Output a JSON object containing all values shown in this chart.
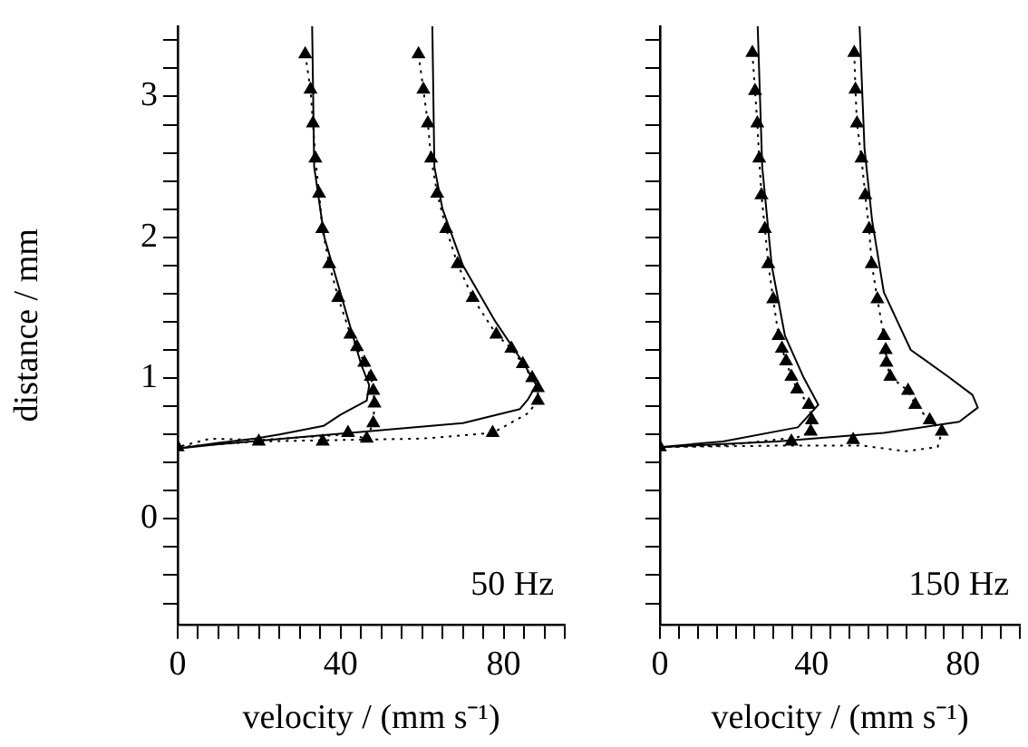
{
  "chart_data": [
    {
      "type": "scatter",
      "xlabel": "velocity / (mm s⁻¹)",
      "ylabel": "distance / mm",
      "annotations": [
        "50 Hz"
      ],
      "xlim": [
        0,
        95
      ],
      "ylim": [
        -0.75,
        3.5
      ],
      "xticks": [
        0,
        {
          "value": 5,
          "label": null
        },
        {
          "value": 10,
          "label": null
        },
        {
          "value": 15,
          "label": null
        },
        {
          "value": 20,
          "label": null
        },
        {
          "value": 25,
          "label": null
        },
        {
          "value": 30,
          "label": null
        },
        {
          "value": 35,
          "label": null
        },
        40,
        {
          "value": 45,
          "label": null
        },
        {
          "value": 50,
          "label": null
        },
        {
          "value": 55,
          "label": null
        },
        {
          "value": 60,
          "label": null
        },
        {
          "value": 65,
          "label": null
        },
        {
          "value": 70,
          "label": null
        },
        {
          "value": 75,
          "label": null
        },
        80,
        {
          "value": 85,
          "label": null
        },
        {
          "value": 90,
          "label": null
        },
        {
          "value": 95,
          "label": null
        }
      ],
      "yticks": [
        {
          "value": -0.6,
          "label": null
        },
        {
          "value": -0.4,
          "label": null
        },
        {
          "value": -0.2,
          "label": null
        },
        0,
        {
          "value": 0.2,
          "label": null
        },
        {
          "value": 0.4,
          "label": null
        },
        {
          "value": 0.6,
          "label": null
        },
        {
          "value": 0.8,
          "label": null
        },
        1,
        {
          "value": 1.2,
          "label": null
        },
        {
          "value": 1.4,
          "label": null
        },
        {
          "value": 1.6,
          "label": null
        },
        {
          "value": 1.8,
          "label": null
        },
        2,
        {
          "value": 2.2,
          "label": null
        },
        {
          "value": 2.4,
          "label": null
        },
        {
          "value": 2.6,
          "label": null
        },
        {
          "value": 2.8,
          "label": null
        },
        3,
        {
          "value": 3.2,
          "label": null
        },
        {
          "value": 3.4,
          "label": null
        }
      ],
      "series": [
        {
          "type": "line",
          "line_style": "solid",
          "marker": "none",
          "color": "#000000",
          "x": [
            33,
            33.5,
            36,
            40,
            45,
            47,
            46.4,
            40,
            35.8,
            25,
            19,
            10,
            0
          ],
          "values": [
            3.5,
            2.5,
            2.0,
            1.6,
            1.1,
            0.95,
            0.84,
            0.74,
            0.66,
            0.6,
            0.57,
            0.54,
            0.5
          ]
        },
        {
          "type": "line",
          "line_style": "solid",
          "marker": "none",
          "color": "#000000",
          "x": [
            62.5,
            63,
            65,
            70,
            78,
            85,
            88,
            86,
            84,
            70,
            50,
            30,
            10,
            0
          ],
          "values": [
            3.5,
            2.5,
            2.2,
            1.8,
            1.4,
            1.1,
            0.95,
            0.85,
            0.78,
            0.68,
            0.63,
            0.58,
            0.53,
            0.5
          ]
        },
        {
          "type": "line",
          "line_style": "dotted",
          "marker": "none",
          "color": "#000000",
          "x": [
            31.3,
            32.6,
            33.2,
            33.8,
            34.7,
            35.5,
            37.2,
            39.4,
            42.4,
            44.0,
            45.8,
            47.4,
            48.0,
            48.3,
            48.0,
            46.4,
            41.8,
            20,
            8,
            0
          ],
          "values": [
            3.3,
            3.05,
            2.81,
            2.56,
            2.31,
            2.06,
            1.81,
            1.57,
            1.31,
            1.22,
            1.11,
            1.01,
            0.91,
            0.82,
            0.68,
            0.57,
            0.6,
            0.56,
            0.57,
            0.51
          ]
        },
        {
          "type": "line",
          "line_style": "dotted",
          "marker": "none",
          "color": "#000000",
          "x": [
            59.1,
            60.3,
            61.4,
            62.2,
            63.7,
            65.9,
            68.7,
            72.4,
            78.2,
            81.9,
            84.7,
            87,
            88.4,
            88.4,
            86,
            77.3,
            60,
            40,
            20,
            0
          ],
          "values": [
            3.3,
            3.05,
            2.81,
            2.56,
            2.31,
            2.06,
            1.81,
            1.57,
            1.31,
            1.21,
            1.1,
            1.0,
            0.93,
            0.84,
            0.75,
            0.61,
            0.57,
            0.56,
            0.55,
            0.51
          ]
        },
        {
          "marker": "triangle",
          "color": "#000000",
          "x": [
            31.3,
            32.6,
            33.2,
            33.8,
            34.7,
            35.5,
            37.2,
            39.4,
            42.4,
            44.0,
            45.8,
            47.4,
            48.0,
            48.3,
            48.0,
            46.4,
            41.8,
            19.9,
            0
          ],
          "values": [
            3.3,
            3.05,
            2.81,
            2.56,
            2.31,
            2.06,
            1.81,
            1.57,
            1.31,
            1.22,
            1.11,
            1.01,
            0.91,
            0.82,
            0.68,
            0.57,
            0.61,
            0.55,
            0.51
          ]
        },
        {
          "marker": "triangle",
          "color": "#000000",
          "x": [
            59.1,
            60.3,
            61.4,
            62.2,
            63.7,
            65.9,
            68.7,
            72.4,
            78.2,
            81.9,
            84.7,
            87,
            88.4,
            88.4,
            77.3,
            35.6
          ],
          "values": [
            3.3,
            3.05,
            2.81,
            2.56,
            2.31,
            2.06,
            1.81,
            1.57,
            1.31,
            1.21,
            1.1,
            1.0,
            0.93,
            0.84,
            0.61,
            0.55
          ]
        }
      ]
    },
    {
      "type": "scatter",
      "xlabel": "velocity / (mm s⁻¹)",
      "annotations": [
        "150 Hz"
      ],
      "tick_labels": "x",
      "xlim": [
        0,
        95
      ],
      "ylim": [
        -0.75,
        3.5
      ],
      "xticks": [
        0,
        {
          "value": 5,
          "label": null
        },
        {
          "value": 10,
          "label": null
        },
        {
          "value": 15,
          "label": null
        },
        {
          "value": 20,
          "label": null
        },
        {
          "value": 25,
          "label": null
        },
        {
          "value": 30,
          "label": null
        },
        {
          "value": 35,
          "label": null
        },
        40,
        {
          "value": 45,
          "label": null
        },
        {
          "value": 50,
          "label": null
        },
        {
          "value": 55,
          "label": null
        },
        {
          "value": 60,
          "label": null
        },
        {
          "value": 65,
          "label": null
        },
        {
          "value": 70,
          "label": null
        },
        {
          "value": 75,
          "label": null
        },
        80,
        {
          "value": 85,
          "label": null
        },
        {
          "value": 90,
          "label": null
        },
        {
          "value": 95,
          "label": null
        }
      ],
      "yticks": [
        {
          "value": -0.6,
          "label": null
        },
        {
          "value": -0.4,
          "label": null
        },
        {
          "value": -0.2,
          "label": null
        },
        0,
        {
          "value": 0.2,
          "label": null
        },
        {
          "value": 0.4,
          "label": null
        },
        {
          "value": 0.6,
          "label": null
        },
        {
          "value": 0.8,
          "label": null
        },
        1,
        {
          "value": 1.2,
          "label": null
        },
        {
          "value": 1.4,
          "label": null
        },
        {
          "value": 1.6,
          "label": null
        },
        {
          "value": 1.8,
          "label": null
        },
        2,
        {
          "value": 2.2,
          "label": null
        },
        {
          "value": 2.4,
          "label": null
        },
        {
          "value": 2.6,
          "label": null
        },
        {
          "value": 2.8,
          "label": null
        },
        3,
        {
          "value": 3.2,
          "label": null
        },
        {
          "value": 3.4,
          "label": null
        }
      ],
      "series": [
        {
          "type": "line",
          "line_style": "solid",
          "marker": "none",
          "color": "#000000",
          "x": [
            25.8,
            27,
            29.5,
            33,
            38,
            41.8,
            36.4,
            16.6,
            0
          ],
          "values": [
            3.5,
            2.5,
            1.8,
            1.3,
            1.0,
            0.81,
            0.65,
            0.55,
            0.51
          ]
        },
        {
          "type": "line",
          "line_style": "solid",
          "marker": "none",
          "color": "#000000",
          "x": [
            52.7,
            54,
            56,
            59.1,
            66.2,
            76.1,
            82.5,
            83.9,
            79,
            59.1,
            30.8,
            0
          ],
          "values": [
            3.5,
            2.63,
            2.12,
            1.61,
            1.2,
            1.01,
            0.88,
            0.79,
            0.69,
            0.61,
            0.55,
            0.51
          ]
        },
        {
          "type": "line",
          "line_style": "dotted",
          "marker": "none",
          "color": "#000000",
          "x": [
            24.4,
            25.1,
            25.7,
            26.2,
            26.8,
            27.7,
            28.6,
            29.9,
            31.3,
            32.2,
            33.3,
            34.7,
            36.2,
            39.3,
            40.1,
            39.8,
            36.4,
            16.6,
            0
          ],
          "values": [
            3.31,
            3.04,
            2.81,
            2.56,
            2.3,
            2.06,
            1.81,
            1.56,
            1.3,
            1.21,
            1.12,
            1.01,
            0.92,
            0.81,
            0.7,
            0.62,
            0.58,
            0.52,
            0.51
          ]
        },
        {
          "type": "line",
          "line_style": "dotted",
          "marker": "none",
          "color": "#000000",
          "x": [
            51.3,
            51.6,
            52.0,
            53.2,
            54.2,
            55.2,
            55.9,
            57.4,
            59.1,
            59.6,
            59.8,
            60.8,
            65.5,
            67.4,
            71.2,
            74.4,
            73.3,
            64.8,
            53.5,
            30.8,
            0
          ],
          "values": [
            3.31,
            3.05,
            2.81,
            2.56,
            2.3,
            2.06,
            1.81,
            1.56,
            1.3,
            1.2,
            1.11,
            1.01,
            0.91,
            0.81,
            0.7,
            0.62,
            0.51,
            0.48,
            0.52,
            0.52,
            0.51
          ]
        },
        {
          "marker": "triangle",
          "color": "#000000",
          "x": [
            24.4,
            25.1,
            25.7,
            26.2,
            26.8,
            27.7,
            28.6,
            29.9,
            31.3,
            32.2,
            33.3,
            34.7,
            36.2,
            39.3,
            40.1,
            39.8,
            34.7,
            0
          ],
          "values": [
            3.31,
            3.04,
            2.81,
            2.56,
            2.3,
            2.06,
            1.81,
            1.56,
            1.3,
            1.21,
            1.12,
            1.01,
            0.92,
            0.81,
            0.7,
            0.62,
            0.55,
            0.51
          ]
        },
        {
          "marker": "triangle",
          "color": "#000000",
          "x": [
            51.3,
            51.6,
            52.0,
            53.2,
            54.2,
            55.2,
            55.9,
            57.4,
            59.1,
            59.6,
            59.8,
            60.8,
            65.5,
            67.4,
            71.2,
            74.4,
            51.0
          ],
          "values": [
            3.31,
            3.05,
            2.81,
            2.56,
            2.3,
            2.06,
            1.81,
            1.56,
            1.3,
            1.2,
            1.11,
            1.01,
            0.91,
            0.81,
            0.7,
            0.62,
            0.56
          ]
        }
      ]
    }
  ]
}
